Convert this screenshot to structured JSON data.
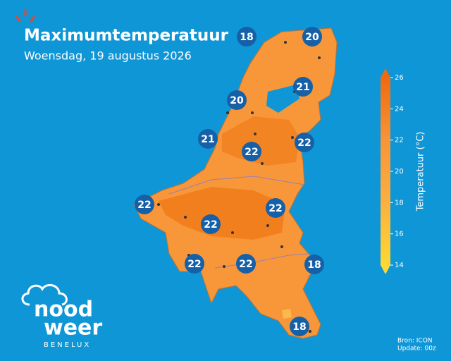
{
  "header": {
    "title": "Maximumtemperatuur",
    "subtitle": "Woensdag, 19 augustus 2026"
  },
  "stations": [
    18,
    20,
    21,
    20,
    21,
    22,
    22,
    22,
    22,
    22,
    22,
    22,
    18,
    18
  ],
  "legend": {
    "label": "Temperatuur (°C)",
    "lim": [
      14,
      26
    ],
    "ticks": [
      14,
      16,
      18,
      20,
      22,
      24,
      26
    ]
  },
  "footer": {
    "source": "Bron: ICON",
    "update": "Update: 00z"
  },
  "logo": {
    "line1": "nood",
    "line2": "weer",
    "tagline": "BENELUX"
  }
}
